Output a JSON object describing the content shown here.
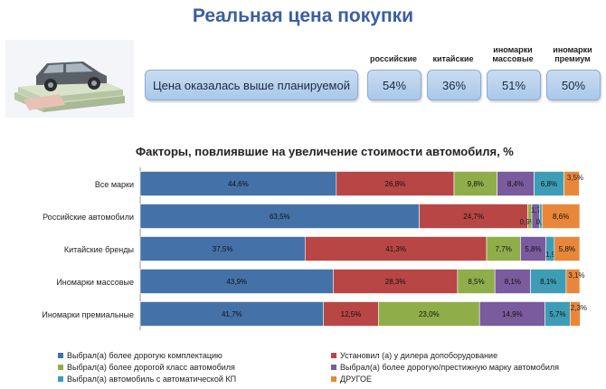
{
  "header": {
    "title": "Реальная цена покупки"
  },
  "summary": {
    "main_label": "Цена оказалась выше планируемой",
    "groups": [
      {
        "header": "российские",
        "value": "54%"
      },
      {
        "header": "китайские",
        "value": "36%"
      },
      {
        "header": "иномарки массовые",
        "value": "51%"
      },
      {
        "header": "иномарки премиум",
        "value": "50%"
      }
    ]
  },
  "chart_data": {
    "type": "bar",
    "orientation": "horizontal",
    "stacked": true,
    "title": "Факторы, повлиявшие на увеличение стоимости автомобиля, %",
    "categories": [
      "Все марки",
      "Российские автомобили",
      "Китайские бренды",
      "Иномарки массовые",
      "Иномарки премиальные"
    ],
    "series": [
      {
        "name": "Выбрал(а) более дорогую комплектацию",
        "color": "#4472a8",
        "values": [
          44.6,
          63.5,
          37.5,
          43.9,
          41.7
        ],
        "labels": [
          "44,6%",
          "63,5%",
          "37,5%",
          "43,9%",
          "41,7%"
        ]
      },
      {
        "name": "Установил (а) у дилера допоборудование",
        "color": "#b84644",
        "values": [
          26.8,
          24.7,
          41.3,
          28.3,
          12.5
        ],
        "labels": [
          "26,8%",
          "24,7%",
          "41,3%",
          "28,3%",
          "12,5%"
        ]
      },
      {
        "name": "Выбрал(а) более дорогой класс автомобиля",
        "color": "#8fae4a",
        "values": [
          9.8,
          0.9,
          7.7,
          8.5,
          23.0
        ],
        "labels": [
          "9,8%",
          "0,9%",
          "7,7%",
          "8,5%",
          "23,0%"
        ]
      },
      {
        "name": "Выбрал(а) более дорогую/престижную марку автомобиля",
        "color": "#7a5b9e",
        "values": [
          8.4,
          1.7,
          5.8,
          8.1,
          14.9
        ],
        "labels": [
          "8,4%",
          "1,7%",
          "5,8%",
          "8,1%",
          "14,9%"
        ]
      },
      {
        "name": "Выбрал(а) автомобиль с автоматической КП",
        "color": "#3e9db5",
        "values": [
          6.8,
          0.6,
          1.9,
          8.1,
          5.7
        ],
        "labels": [
          "6,8%",
          "0,6%",
          "1,9%",
          "8,1%",
          "5,7%"
        ]
      },
      {
        "name": "ДРУГОЕ",
        "color": "#e8873a",
        "values": [
          3.5,
          8.6,
          5.8,
          3.1,
          2.3
        ],
        "labels": [
          "3,5%",
          "8,6%",
          "5,8%",
          "3,1%",
          "2,3%"
        ]
      }
    ],
    "xlim": [
      0,
      100
    ],
    "legend_position": "bottom"
  }
}
